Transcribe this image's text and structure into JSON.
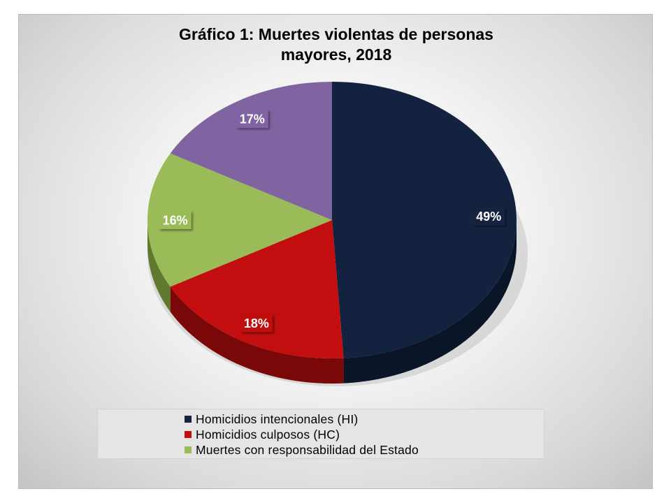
{
  "chart_data": {
    "type": "pie",
    "title_lines": [
      "Gráfico 1: Muertes violentas de personas",
      "mayores, 2018"
    ],
    "categories": [
      "Homicidios intencionales (HI)",
      "Homicidios culposos (HC)",
      "Muertes con responsabilidad del Estado",
      ""
    ],
    "values": [
      49,
      18,
      16,
      17
    ],
    "value_labels": [
      "49%",
      "18%",
      "16%",
      "17%"
    ],
    "colors": [
      "#13233f",
      "#c20e0e",
      "#9bbb59",
      "#8064a2"
    ],
    "side_colors": [
      "#0b1528",
      "#7a0808",
      "#5f7a2e",
      "#5a4478"
    ],
    "legend_position": "bottom",
    "style": "3d-pie"
  },
  "legend": [
    {
      "label": "Homicidios intencionales (HI)",
      "color": "#13233f"
    },
    {
      "label": "Homicidios culposos (HC)",
      "color": "#c20e0e"
    },
    {
      "label": "Muertes con responsabilidad del Estado",
      "color": "#9bbb59"
    }
  ]
}
